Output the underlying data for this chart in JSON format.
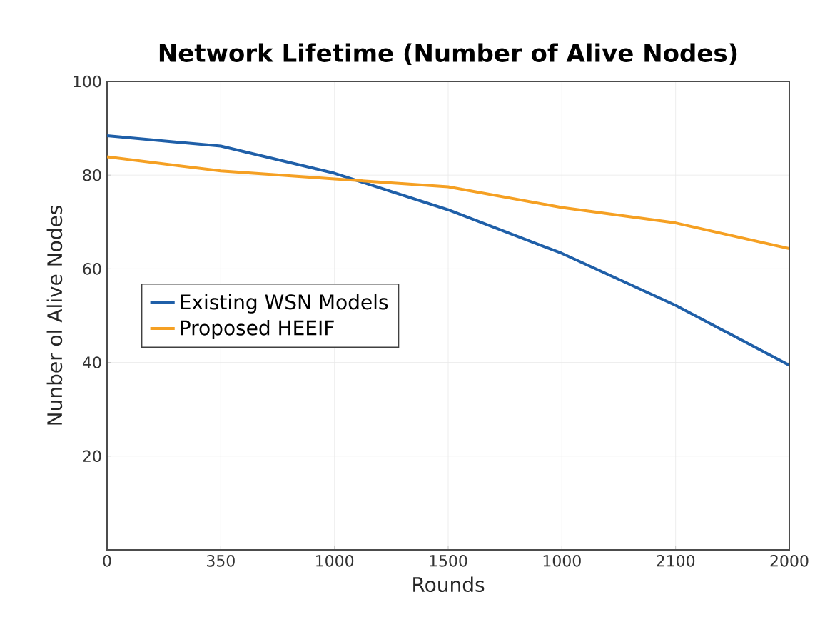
{
  "chart_data": {
    "type": "line",
    "title": "Network Lifetime (Number of Alive Nodes)",
    "xlabel": "Rounds",
    "ylabel": "Nunber ol Alive Nodes",
    "categories": [
      "0",
      "350",
      "1000",
      "1500",
      "1000",
      "2100",
      "2000"
    ],
    "ylim": [
      0,
      100
    ],
    "yticks": [
      20,
      40,
      60,
      80,
      100
    ],
    "grid": true,
    "legend": "left",
    "line_style": "solid",
    "series": [
      {
        "name": "Existing WSN Models",
        "color": "#1f5fa8",
        "values": [
          88.4,
          86.2,
          80.4,
          72.6,
          63.3,
          52.2,
          39.4
        ]
      },
      {
        "name": "Proposed HEEIF",
        "color": "#f5a023",
        "values": [
          83.9,
          80.9,
          79.2,
          77.5,
          73.1,
          69.8,
          64.3
        ]
      }
    ]
  }
}
